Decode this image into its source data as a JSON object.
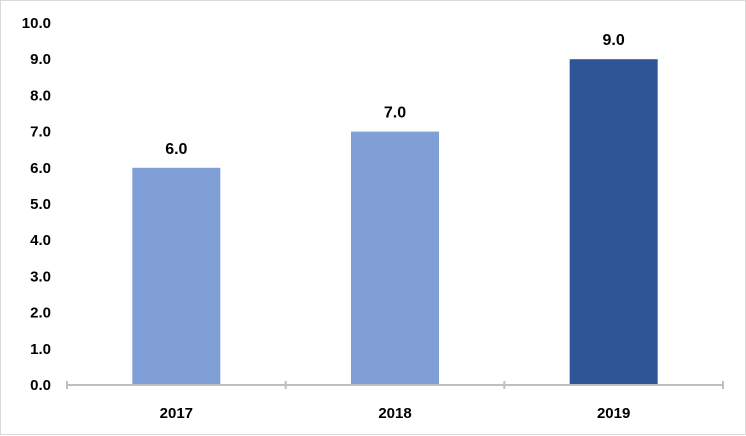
{
  "chart_data": {
    "type": "bar",
    "title": "",
    "xlabel": "",
    "ylabel": "",
    "categories": [
      "2017",
      "2018",
      "2019"
    ],
    "values": [
      6.0,
      7.0,
      9.0
    ],
    "data_labels": [
      "6.0",
      "7.0",
      "9.0"
    ],
    "bar_colors": [
      "#7f9fd6",
      "#7f9fd6",
      "#2f5597"
    ],
    "ylim": [
      0,
      10
    ],
    "y_ticks": [
      "0.0",
      "1.0",
      "2.0",
      "3.0",
      "4.0",
      "5.0",
      "6.0",
      "7.0",
      "8.0",
      "9.0",
      "10.0"
    ],
    "grid": false,
    "legend": "none"
  }
}
